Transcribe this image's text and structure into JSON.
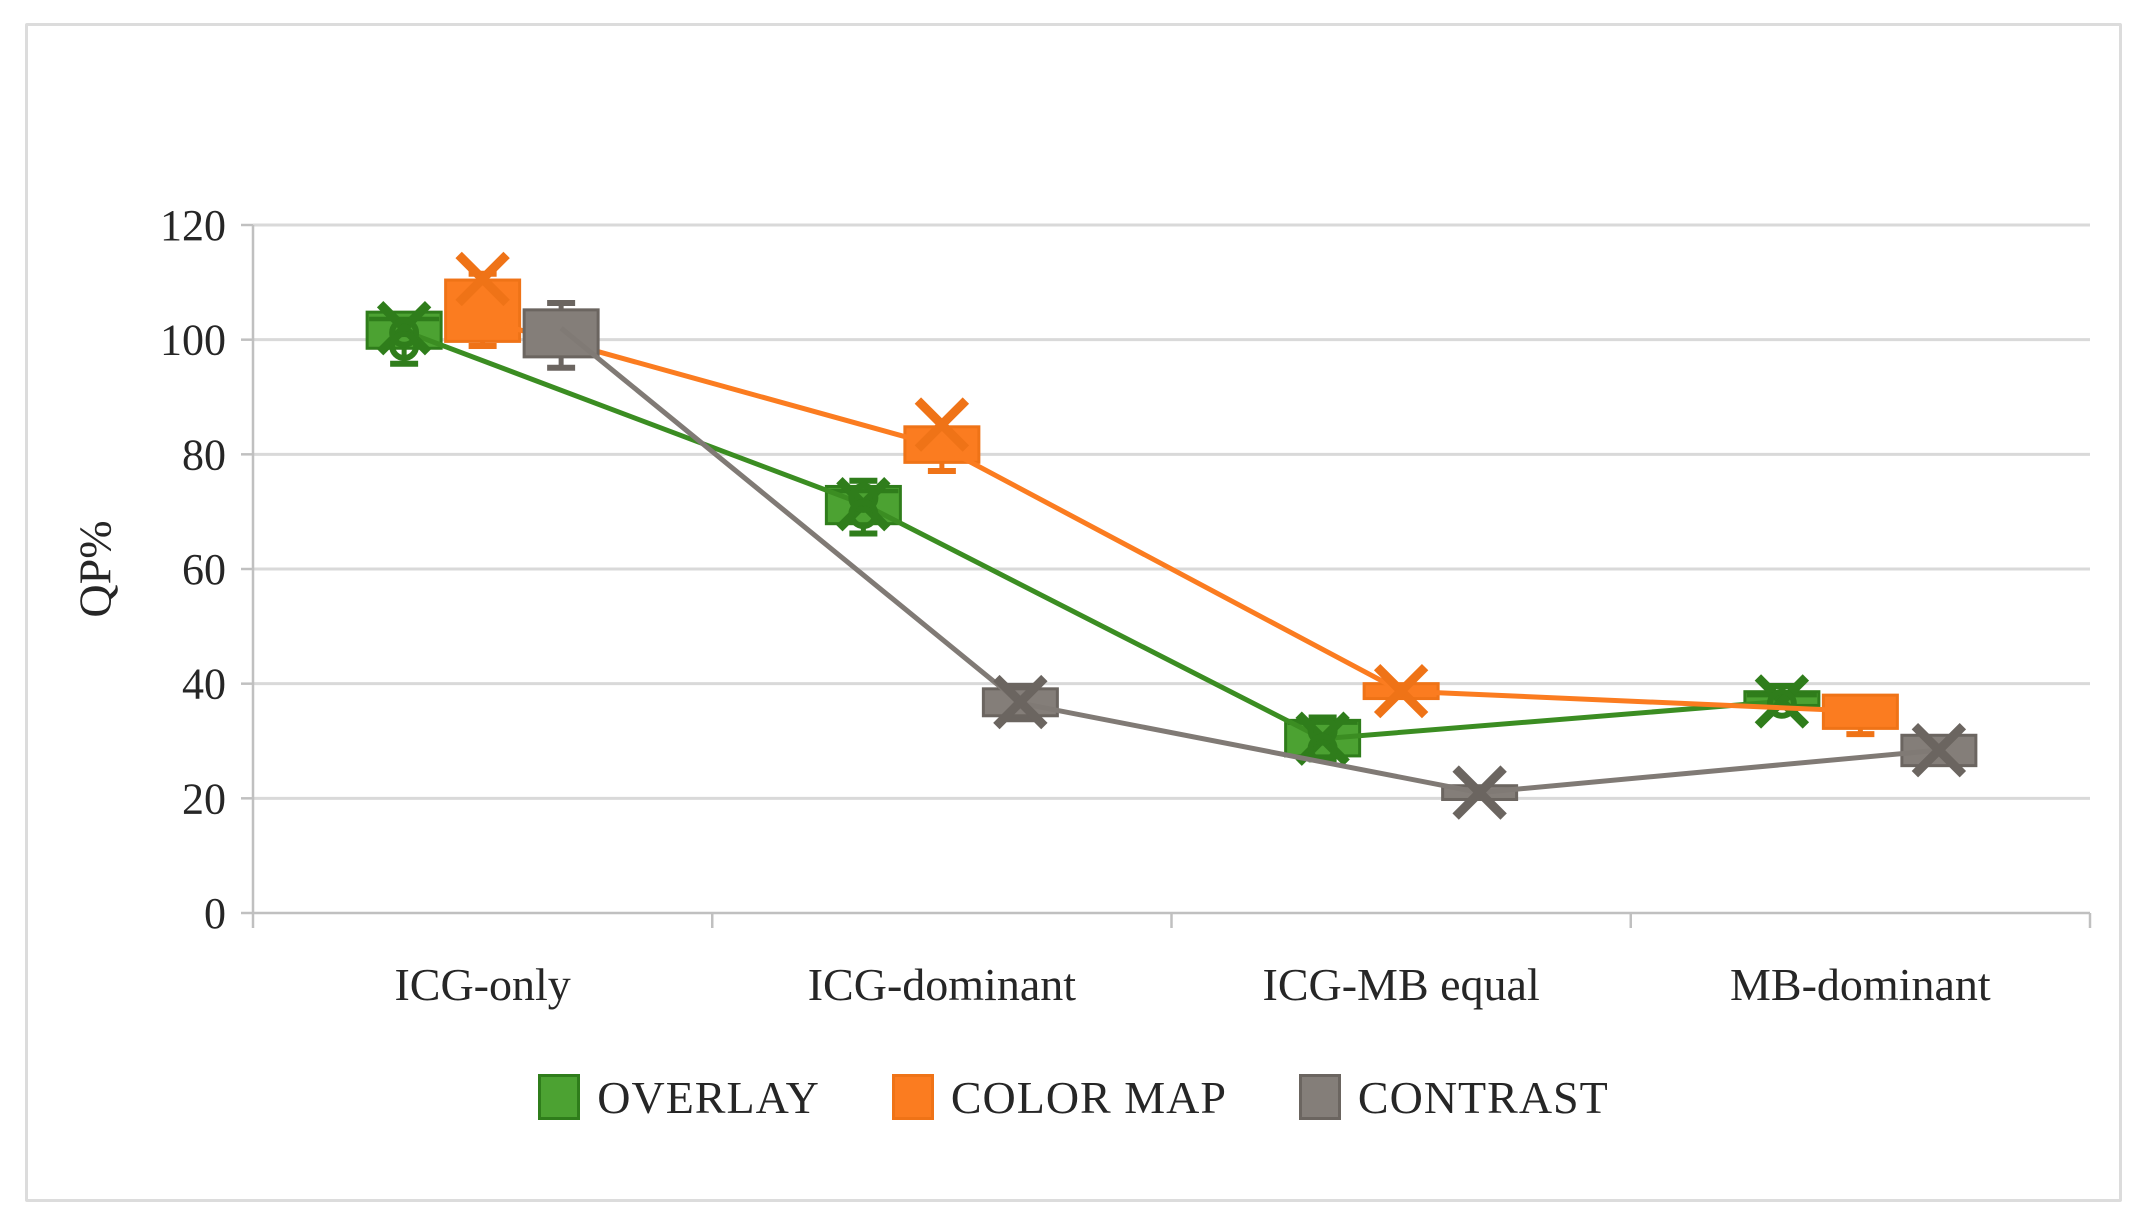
{
  "figure": {
    "background_color": "#ffffff",
    "frame_border_color": "#dcdcdc"
  },
  "chart_data": {
    "type": "box",
    "title": "",
    "ylabel": "QP%",
    "xlabel": "",
    "categories": [
      "ICG-only",
      "ICG-dominant",
      "ICG-MB equal",
      "MB-dominant"
    ],
    "ylim": [
      0,
      120
    ],
    "yticks": [
      0,
      20,
      40,
      60,
      80,
      100,
      120
    ],
    "grid": true,
    "legend_position": "bottom",
    "grid_color": "#d9d9d9",
    "axis_color": "#c0c0c0",
    "text_color": "#262626",
    "series": [
      {
        "name": "OVERLAY",
        "fill": "#4ca232",
        "stroke": "#2f7d1b",
        "line_color": "#3b8d22",
        "line": [
          101.5,
          71.3,
          30.4,
          36.9
        ],
        "boxes": [
          {
            "low": 95.8,
            "q1": 98.5,
            "median": 103.6,
            "q3": 104.8,
            "high": null,
            "mean": 102.0,
            "outliers": [
              101.2,
              98.9
            ]
          },
          {
            "low": 66.2,
            "q1": 67.9,
            "median": 73.6,
            "q3": 74.4,
            "high": 75.4,
            "mean": 71.3,
            "outliers": [
              72.4,
              69.6
            ]
          },
          {
            "low": 26.8,
            "q1": 27.4,
            "median": 33.2,
            "q3": 33.6,
            "high": 34.1,
            "mean": 30.4,
            "outliers": [
              31.8,
              28.7
            ]
          },
          {
            "low": null,
            "q1": 36.2,
            "median": 38.0,
            "q3": 38.6,
            "high": 39.6,
            "mean": 36.9,
            "outliers": [
              36.5
            ]
          }
        ]
      },
      {
        "name": "COLOR MAP",
        "fill": "#fb7c20",
        "stroke": "#ef7317",
        "line_color": "#fb7c20",
        "line": [
          103.5,
          81.3,
          38.7,
          35.2
        ],
        "boxes": [
          {
            "low": 98.9,
            "q1": 99.7,
            "median": null,
            "q3": 110.4,
            "high": 111.5,
            "mean": 110.6,
            "outliers": []
          },
          {
            "low": 77.1,
            "q1": 78.6,
            "median": null,
            "q3": 84.8,
            "high": null,
            "mean": 85.2,
            "outliers": []
          },
          {
            "low": null,
            "q1": 37.4,
            "median": null,
            "q3": 40.0,
            "high": null,
            "mean": 38.7,
            "outliers": []
          },
          {
            "low": 31.2,
            "q1": 32.2,
            "median": null,
            "q3": 38.0,
            "high": null,
            "mean": null,
            "outliers": []
          }
        ]
      },
      {
        "name": "CONTRAST",
        "fill": "#847e79",
        "stroke": "#6b6560",
        "line_color": "#807a75",
        "line": [
          102.0,
          36.6,
          21.0,
          28.4
        ],
        "boxes": [
          {
            "low": 95.1,
            "q1": 97.0,
            "median": null,
            "q3": 105.2,
            "high": 106.4,
            "mean": null,
            "outliers": []
          },
          {
            "low": 33.8,
            "q1": 34.4,
            "median": null,
            "q3": 39.1,
            "high": 39.6,
            "mean": 36.8,
            "outliers": []
          },
          {
            "low": null,
            "q1": 19.8,
            "median": null,
            "q3": 22.2,
            "high": null,
            "mean": 21.0,
            "outliers": []
          },
          {
            "low": null,
            "q1": 25.7,
            "median": null,
            "q3": 31.0,
            "high": null,
            "mean": 28.4,
            "outliers": []
          }
        ]
      }
    ]
  }
}
